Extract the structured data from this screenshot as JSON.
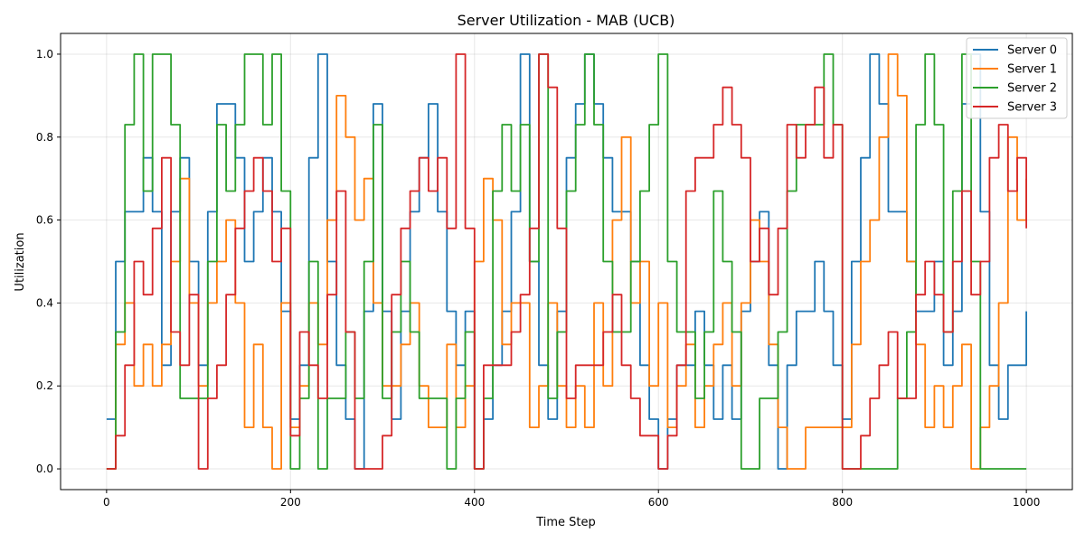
{
  "chart_data": {
    "type": "line",
    "title": "Server Utilization - MAB (UCB)",
    "xlabel": "Time Step",
    "ylabel": "Utilization",
    "xlim": [
      -50,
      1050
    ],
    "ylim": [
      -0.05,
      1.05
    ],
    "xticks": [
      0,
      200,
      400,
      600,
      800,
      1000
    ],
    "yticks": [
      0.0,
      0.2,
      0.4,
      0.6,
      0.8,
      1.0
    ],
    "xtick_labels": [
      "0",
      "200",
      "400",
      "600",
      "800",
      "1000"
    ],
    "ytick_labels": [
      "0.0",
      "0.2",
      "0.4",
      "0.6",
      "0.8",
      "1.0"
    ],
    "grid": true,
    "legend_position": "top-right",
    "series": [
      {
        "name": "Server 0",
        "color": "#1f77b4",
        "x": [
          0,
          10,
          20,
          30,
          40,
          50,
          60,
          70,
          80,
          90,
          100,
          110,
          120,
          130,
          140,
          150,
          160,
          170,
          180,
          190,
          200,
          210,
          220,
          230,
          240,
          250,
          260,
          270,
          280,
          290,
          300,
          310,
          320,
          330,
          340,
          350,
          360,
          370,
          380,
          390,
          400,
          410,
          420,
          430,
          440,
          450,
          460,
          470,
          480,
          490,
          500,
          510,
          520,
          530,
          540,
          550,
          560,
          570,
          580,
          590,
          600,
          610,
          620,
          630,
          640,
          650,
          660,
          670,
          680,
          690,
          700,
          710,
          720,
          730,
          740,
          750,
          760,
          770,
          780,
          790,
          800,
          810,
          820,
          830,
          840,
          850,
          860,
          870,
          880,
          890,
          900,
          910,
          920,
          930,
          940,
          950,
          960,
          970,
          980,
          990,
          1000
        ],
        "values": [
          0.12,
          0.5,
          0.62,
          0.62,
          0.75,
          0.62,
          0.25,
          0.62,
          0.75,
          0.5,
          0.25,
          0.62,
          0.88,
          0.88,
          0.75,
          0.5,
          0.62,
          0.75,
          0.62,
          0.38,
          0.12,
          0.25,
          0.75,
          1.0,
          0.5,
          0.25,
          0.12,
          0.0,
          0.38,
          0.88,
          0.38,
          0.12,
          0.38,
          0.62,
          0.75,
          0.88,
          0.62,
          0.38,
          0.25,
          0.38,
          0.0,
          0.12,
          0.25,
          0.38,
          0.62,
          1.0,
          0.5,
          0.25,
          0.12,
          0.38,
          0.75,
          0.88,
          1.0,
          0.88,
          0.75,
          0.62,
          0.62,
          0.5,
          0.25,
          0.12,
          0.0,
          0.12,
          0.25,
          0.25,
          0.38,
          0.25,
          0.12,
          0.25,
          0.12,
          0.38,
          0.5,
          0.62,
          0.25,
          0.0,
          0.25,
          0.38,
          0.38,
          0.5,
          0.38,
          0.25,
          0.12,
          0.5,
          0.75,
          1.0,
          0.88,
          0.62,
          0.62,
          0.5,
          0.38,
          0.38,
          0.5,
          0.25,
          0.38,
          0.88,
          1.0,
          0.62,
          0.25,
          0.12,
          0.25,
          0.25,
          0.38
        ]
      },
      {
        "name": "Server 1",
        "color": "#ff7f0e",
        "x": [
          0,
          10,
          20,
          30,
          40,
          50,
          60,
          70,
          80,
          90,
          100,
          110,
          120,
          130,
          140,
          150,
          160,
          170,
          180,
          190,
          200,
          210,
          220,
          230,
          240,
          250,
          260,
          270,
          280,
          290,
          300,
          310,
          320,
          330,
          340,
          350,
          360,
          370,
          380,
          390,
          400,
          410,
          420,
          430,
          440,
          450,
          460,
          470,
          480,
          490,
          500,
          510,
          520,
          530,
          540,
          550,
          560,
          570,
          580,
          590,
          600,
          610,
          620,
          630,
          640,
          650,
          660,
          670,
          680,
          690,
          700,
          710,
          720,
          730,
          740,
          750,
          760,
          770,
          780,
          790,
          800,
          810,
          820,
          830,
          840,
          850,
          860,
          870,
          880,
          890,
          900,
          910,
          920,
          930,
          940,
          950,
          960,
          970,
          980,
          990,
          1000
        ],
        "values": [
          0.0,
          0.3,
          0.4,
          0.2,
          0.3,
          0.2,
          0.3,
          0.5,
          0.7,
          0.4,
          0.2,
          0.4,
          0.5,
          0.6,
          0.4,
          0.1,
          0.3,
          0.1,
          0.0,
          0.4,
          0.1,
          0.2,
          0.4,
          0.3,
          0.6,
          0.9,
          0.8,
          0.6,
          0.7,
          0.4,
          0.2,
          0.2,
          0.3,
          0.4,
          0.2,
          0.1,
          0.1,
          0.3,
          0.1,
          0.2,
          0.5,
          0.7,
          0.6,
          0.3,
          0.4,
          0.4,
          0.1,
          0.2,
          0.4,
          0.2,
          0.1,
          0.2,
          0.1,
          0.4,
          0.2,
          0.6,
          0.8,
          0.4,
          0.5,
          0.2,
          0.4,
          0.1,
          0.2,
          0.3,
          0.1,
          0.2,
          0.3,
          0.4,
          0.2,
          0.4,
          0.6,
          0.5,
          0.3,
          0.1,
          0.0,
          0.0,
          0.1,
          0.1,
          0.1,
          0.1,
          0.1,
          0.3,
          0.5,
          0.6,
          0.8,
          1.0,
          0.9,
          0.5,
          0.3,
          0.1,
          0.2,
          0.1,
          0.2,
          0.3,
          0.0,
          0.1,
          0.2,
          0.4,
          0.8,
          0.6,
          0.7
        ]
      },
      {
        "name": "Server 2",
        "color": "#2ca02c",
        "x": [
          0,
          10,
          20,
          30,
          40,
          50,
          60,
          70,
          80,
          90,
          100,
          110,
          120,
          130,
          140,
          150,
          160,
          170,
          180,
          190,
          200,
          210,
          220,
          230,
          240,
          250,
          260,
          270,
          280,
          290,
          300,
          310,
          320,
          330,
          340,
          350,
          360,
          370,
          380,
          390,
          400,
          410,
          420,
          430,
          440,
          450,
          460,
          470,
          480,
          490,
          500,
          510,
          520,
          530,
          540,
          550,
          560,
          570,
          580,
          590,
          600,
          610,
          620,
          630,
          640,
          650,
          660,
          670,
          680,
          690,
          700,
          710,
          720,
          730,
          740,
          750,
          760,
          770,
          780,
          790,
          800,
          810,
          820,
          830,
          840,
          850,
          860,
          870,
          880,
          890,
          900,
          910,
          920,
          930,
          940,
          950,
          960,
          970,
          980,
          990,
          1000
        ],
        "values": [
          0.0,
          0.33,
          0.83,
          1.0,
          0.67,
          1.0,
          1.0,
          0.83,
          0.17,
          0.17,
          0.17,
          0.5,
          0.83,
          0.67,
          0.83,
          1.0,
          1.0,
          0.83,
          1.0,
          0.67,
          0.0,
          0.17,
          0.5,
          0.0,
          0.17,
          0.17,
          0.33,
          0.17,
          0.5,
          0.83,
          0.17,
          0.33,
          0.5,
          0.33,
          0.17,
          0.17,
          0.17,
          0.0,
          0.17,
          0.33,
          0.0,
          0.17,
          0.67,
          0.83,
          0.67,
          0.83,
          0.5,
          1.0,
          0.17,
          0.33,
          0.67,
          0.83,
          1.0,
          0.83,
          0.5,
          0.33,
          0.33,
          0.5,
          0.67,
          0.83,
          1.0,
          0.5,
          0.33,
          0.33,
          0.17,
          0.33,
          0.67,
          0.5,
          0.33,
          0.0,
          0.0,
          0.17,
          0.17,
          0.33,
          0.67,
          0.83,
          0.83,
          0.83,
          1.0,
          0.83,
          0.0,
          0.0,
          0.0,
          0.0,
          0.0,
          0.0,
          0.17,
          0.33,
          0.83,
          1.0,
          0.83,
          0.33,
          0.67,
          1.0,
          0.5,
          0.0,
          0.0,
          0.0,
          0.0,
          0.0,
          0.0
        ]
      },
      {
        "name": "Server 3",
        "color": "#d62728",
        "x": [
          0,
          10,
          20,
          30,
          40,
          50,
          60,
          70,
          80,
          90,
          100,
          110,
          120,
          130,
          140,
          150,
          160,
          170,
          180,
          190,
          200,
          210,
          220,
          230,
          240,
          250,
          260,
          270,
          280,
          290,
          300,
          310,
          320,
          330,
          340,
          350,
          360,
          370,
          380,
          390,
          400,
          410,
          420,
          430,
          440,
          450,
          460,
          470,
          480,
          490,
          500,
          510,
          520,
          530,
          540,
          550,
          560,
          570,
          580,
          590,
          600,
          610,
          620,
          630,
          640,
          650,
          660,
          670,
          680,
          690,
          700,
          710,
          720,
          730,
          740,
          750,
          760,
          770,
          780,
          790,
          800,
          810,
          820,
          830,
          840,
          850,
          860,
          870,
          880,
          890,
          900,
          910,
          920,
          930,
          940,
          950,
          960,
          970,
          980,
          990,
          1000
        ],
        "values": [
          0.0,
          0.08,
          0.25,
          0.5,
          0.42,
          0.58,
          0.75,
          0.33,
          0.25,
          0.42,
          0.0,
          0.17,
          0.25,
          0.42,
          0.58,
          0.67,
          0.75,
          0.67,
          0.5,
          0.58,
          0.08,
          0.33,
          0.25,
          0.17,
          0.42,
          0.67,
          0.33,
          0.0,
          0.0,
          0.0,
          0.08,
          0.42,
          0.58,
          0.67,
          0.75,
          0.67,
          0.75,
          0.58,
          1.0,
          0.58,
          0.0,
          0.25,
          0.25,
          0.25,
          0.33,
          0.42,
          0.58,
          1.0,
          0.92,
          0.58,
          0.17,
          0.25,
          0.25,
          0.25,
          0.33,
          0.42,
          0.25,
          0.17,
          0.08,
          0.08,
          0.0,
          0.08,
          0.25,
          0.67,
          0.75,
          0.75,
          0.83,
          0.92,
          0.83,
          0.75,
          0.5,
          0.58,
          0.42,
          0.58,
          0.83,
          0.75,
          0.83,
          0.92,
          0.75,
          0.83,
          0.0,
          0.0,
          0.08,
          0.17,
          0.25,
          0.33,
          0.17,
          0.17,
          0.42,
          0.5,
          0.42,
          0.33,
          0.5,
          0.67,
          0.42,
          0.5,
          0.75,
          0.83,
          0.67,
          0.75,
          0.58
        ]
      }
    ]
  }
}
